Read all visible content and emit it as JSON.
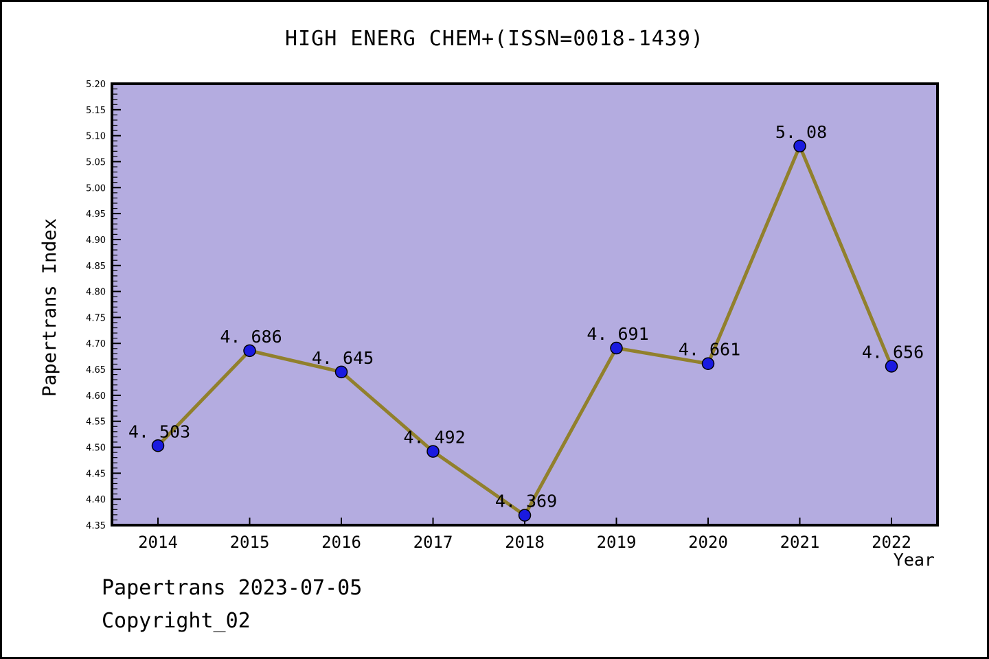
{
  "page": {
    "title": "HIGH ENERG CHEM+(ISSN=0018-1439)",
    "footer_line1": "Papertrans 2023-07-05",
    "footer_line2": "Copyright_02"
  },
  "chart_data": {
    "type": "line",
    "title": "HIGH ENERG CHEM+(ISSN=0018-1439)",
    "xlabel": "Year",
    "ylabel": "Papertrans Index",
    "categories": [
      "2014",
      "2015",
      "2016",
      "2017",
      "2018",
      "2019",
      "2020",
      "2021",
      "2022"
    ],
    "values": [
      4.503,
      4.686,
      4.645,
      4.492,
      4.369,
      4.691,
      4.661,
      5.08,
      4.656
    ],
    "point_labels": [
      "4. 503",
      "4. 686",
      "4. 645",
      "4. 492",
      "4. 369",
      "4. 691",
      "4. 661",
      "5. 08",
      "4. 656"
    ],
    "ylim": [
      4.35,
      5.2
    ],
    "ytick_step": 0.05,
    "ytick_minor_step": 0.01,
    "grid": false,
    "legend": "none",
    "colors": {
      "plot_bg": "#b4ace0",
      "line": "#91802c",
      "marker": "#1a1ae0",
      "marker_edge": "#000000",
      "axis": "#000000",
      "text": "#000000"
    }
  }
}
